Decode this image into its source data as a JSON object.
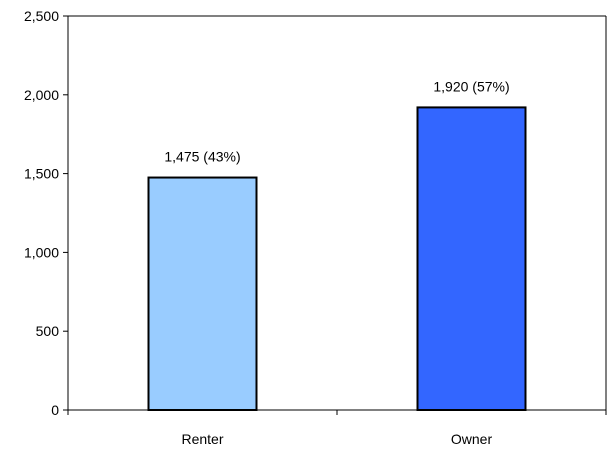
{
  "chart_data": {
    "type": "bar",
    "categories": [
      "Renter",
      "Owner"
    ],
    "values": [
      1475,
      1920
    ],
    "data_labels": [
      "1,475 (43%)",
      "1,920 (57%)"
    ],
    "bar_colors": [
      "#99ccff",
      "#3366ff"
    ],
    "title": "",
    "xlabel": "",
    "ylabel": "",
    "ylim": [
      0,
      2500
    ],
    "yticks": [
      0,
      500,
      1000,
      1500,
      2000,
      2500
    ],
    "ytick_labels": [
      "0",
      "500",
      "1,000",
      "1,500",
      "2,000",
      "2,500"
    ],
    "grid": false,
    "legend": "none"
  }
}
